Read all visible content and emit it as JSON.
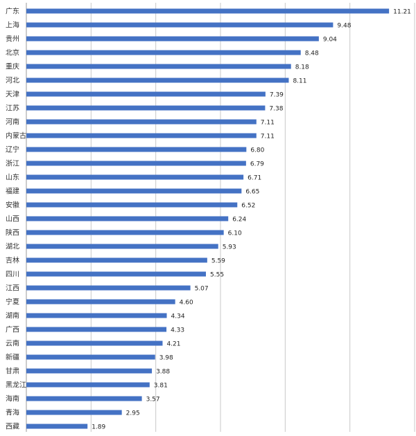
{
  "chart_data": {
    "type": "bar",
    "orientation": "horizontal",
    "categories": [
      "广东",
      "上海",
      "贵州",
      "北京",
      "重庆",
      "河北",
      "天津",
      "江苏",
      "河南",
      "内蒙古",
      "辽宁",
      "浙江",
      "山东",
      "福建",
      "安徽",
      "山西",
      "陕西",
      "湖北",
      "吉林",
      "四川",
      "江西",
      "宁夏",
      "湖南",
      "广西",
      "云南",
      "新疆",
      "甘肃",
      "黑龙江",
      "海南",
      "青海",
      "西藏"
    ],
    "values": [
      11.21,
      9.48,
      9.04,
      8.48,
      8.18,
      8.11,
      7.39,
      7.38,
      7.11,
      7.11,
      6.8,
      6.79,
      6.71,
      6.65,
      6.52,
      6.24,
      6.1,
      5.93,
      5.59,
      5.55,
      5.07,
      4.6,
      4.34,
      4.33,
      4.21,
      3.98,
      3.88,
      3.81,
      3.57,
      2.95,
      1.89
    ],
    "value_labels": [
      "11.21",
      "9.48",
      "9.04",
      "8.48",
      "8.18",
      "8.11",
      "7.39",
      "7.38",
      "7.11",
      "7.11",
      "6.80",
      "6.79",
      "6.71",
      "6.65",
      "6.52",
      "6.24",
      "6.10",
      "5.93",
      "5.59",
      "5.55",
      "5.07",
      "4.60",
      "4.34",
      "4.33",
      "4.21",
      "3.98",
      "3.88",
      "3.81",
      "3.57",
      "2.95",
      "1.89"
    ],
    "xlim": [
      0,
      12
    ],
    "grid_step": 2,
    "grid": true,
    "legend": "none",
    "bar_color": "#4472c4"
  }
}
